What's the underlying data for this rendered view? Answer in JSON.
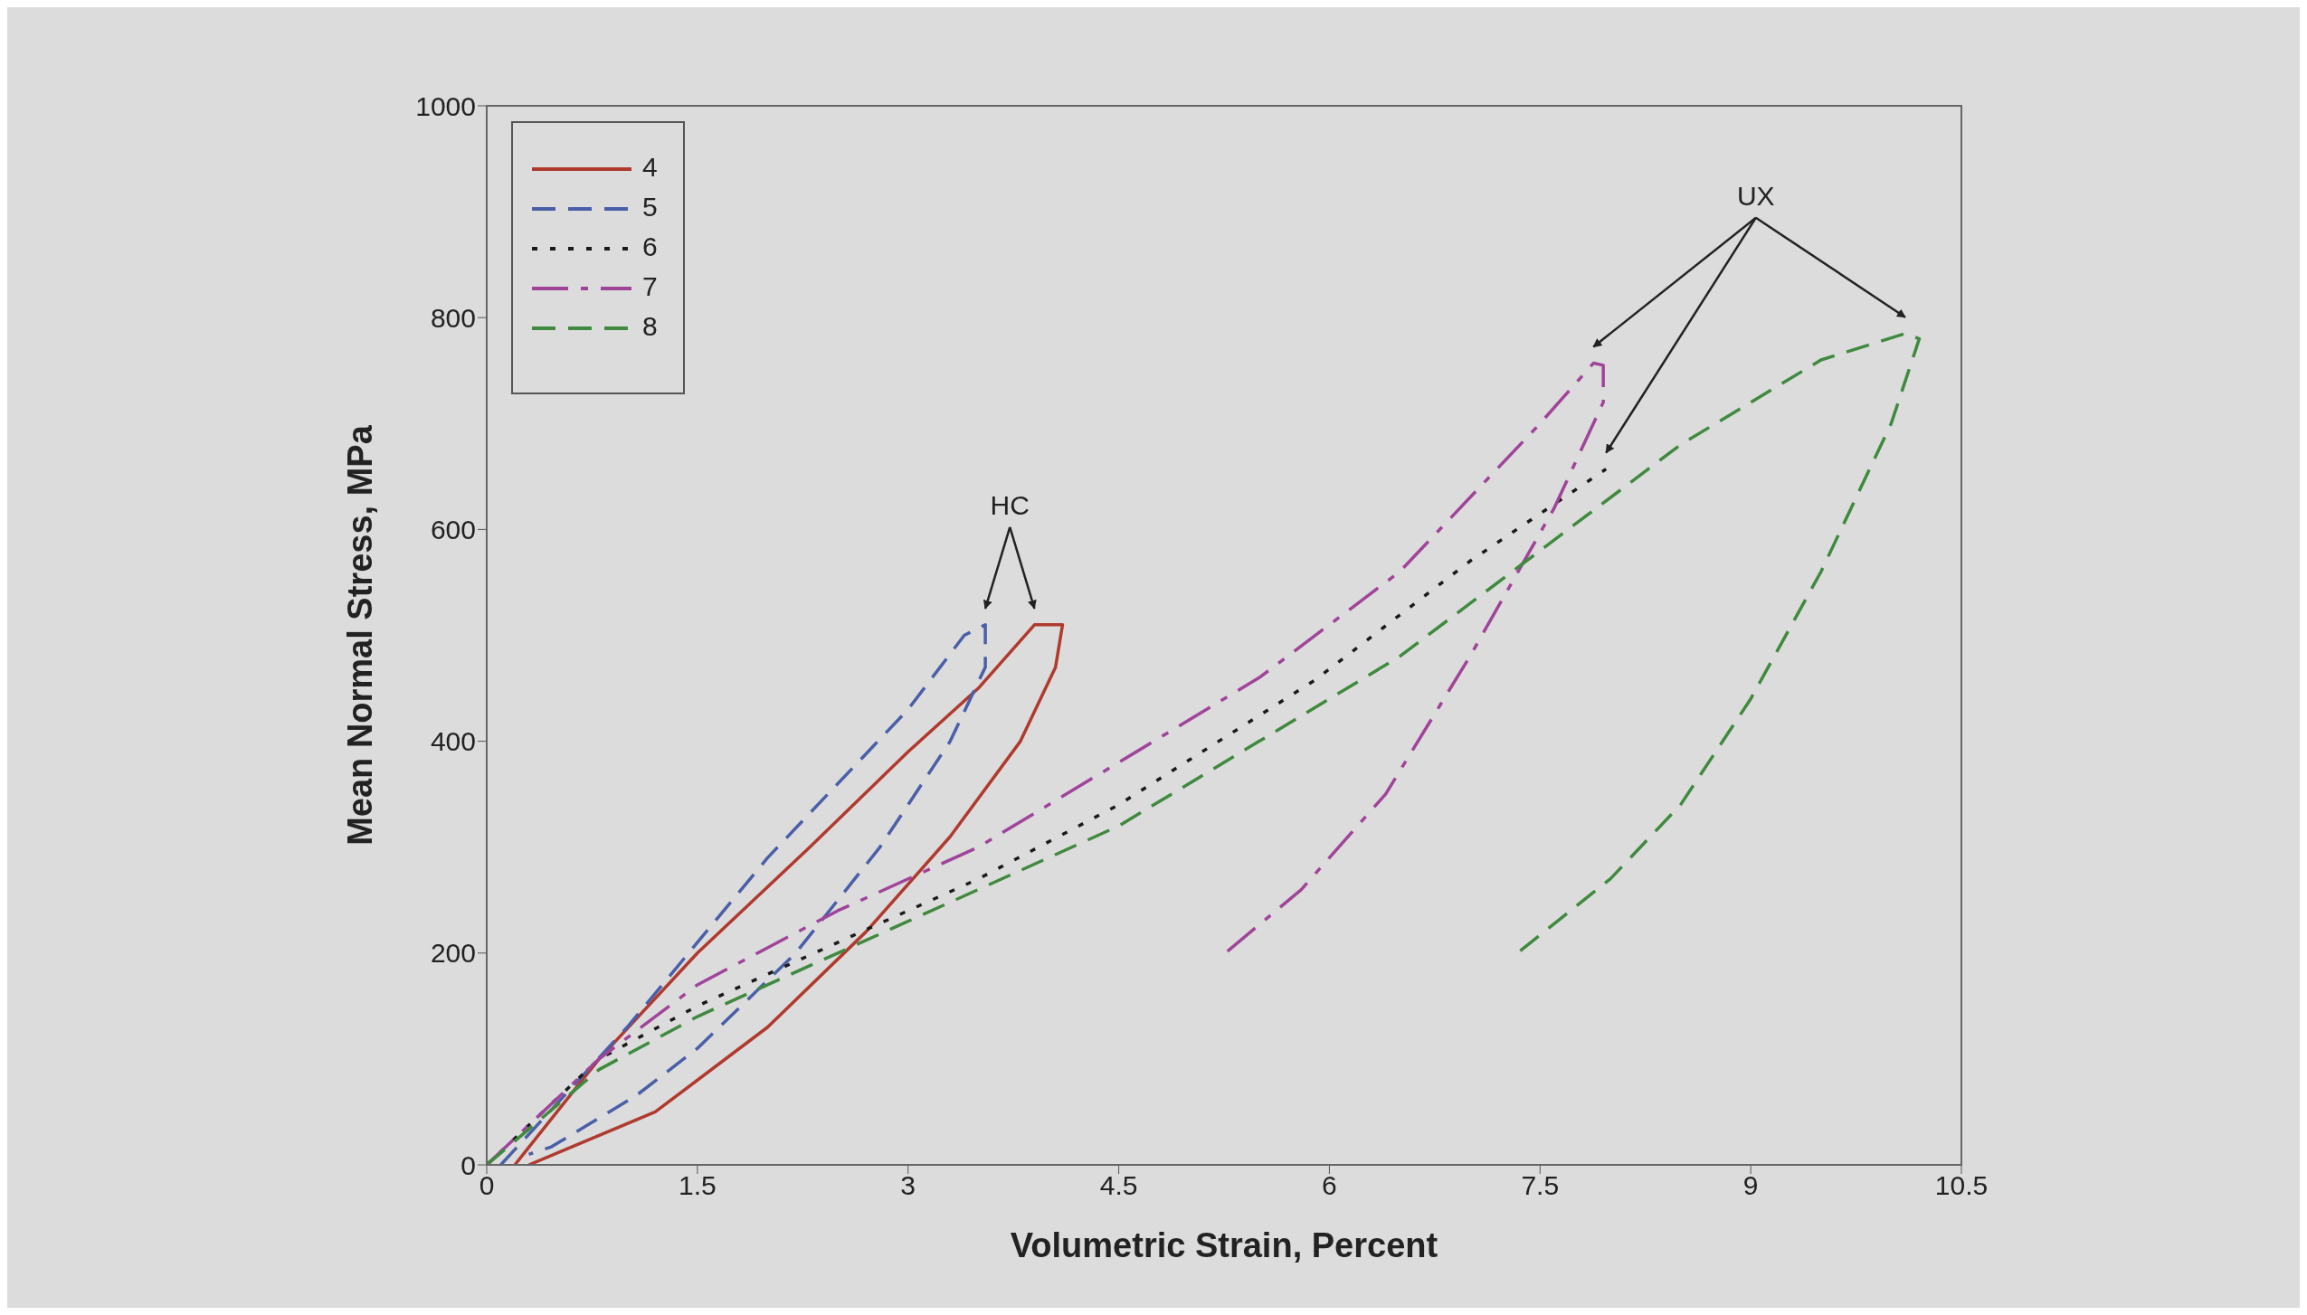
{
  "chart_data": {
    "type": "line",
    "xlabel": "Volumetric Strain, Percent",
    "ylabel": "Mean Normal Stress, MPa",
    "xlim": [
      0,
      10.5
    ],
    "xticks": [
      0,
      1.5,
      3,
      4.5,
      6,
      7.5,
      9,
      10.5
    ],
    "ylim": [
      0,
      1000
    ],
    "yticks": [
      0,
      200,
      400,
      600,
      800,
      1000
    ],
    "grid": false,
    "legend": "top left",
    "marker": "none",
    "series": [
      {
        "name": "4",
        "color": "#b03a2e",
        "line_style": "solid",
        "x": [
          0.2,
          0.8,
          1.5,
          2.3,
          3.0,
          3.5,
          3.9,
          4.1,
          4.05,
          3.8,
          3.3,
          2.7,
          2.0,
          1.2,
          0.3
        ],
        "values": [
          0,
          100,
          200,
          300,
          390,
          450,
          510,
          510,
          470,
          400,
          310,
          220,
          130,
          50,
          0
        ]
      },
      {
        "name": "5",
        "color": "#4a5fa8",
        "line_style": "dashed",
        "x": [
          0.1,
          1.0,
          2.0,
          3.0,
          3.4,
          3.55,
          3.55,
          3.3,
          2.8,
          2.2,
          1.5,
          1.06,
          0.46,
          0.3
        ],
        "values": [
          0,
          130,
          290,
          430,
          500,
          510,
          470,
          400,
          300,
          200,
          110,
          65,
          17,
          10
        ]
      },
      {
        "name": "6",
        "color": "#1a1a1a",
        "line_style": "dotted",
        "x": [
          0,
          0.8,
          1.5,
          2.5,
          3.5,
          4.5,
          5.9,
          7.0,
          7.97
        ],
        "values": [
          0,
          100,
          150,
          210,
          270,
          340,
          458,
          570,
          657
        ]
      },
      {
        "name": "7",
        "color": "#a0449a",
        "line_style": "dashdot",
        "x": [
          0,
          0.8,
          1.5,
          2.5,
          3.5,
          4.5,
          5.5,
          6.5,
          7.5,
          7.88,
          7.95,
          7.95,
          7.6,
          7.0,
          6.4,
          5.8,
          5.25
        ],
        "values": [
          0,
          100,
          170,
          240,
          300,
          380,
          460,
          560,
          700,
          757,
          755,
          720,
          620,
          480,
          350,
          260,
          199
        ]
      },
      {
        "name": "8",
        "color": "#3f8a3f",
        "line_style": "dashed",
        "x": [
          0,
          0.8,
          1.5,
          2.5,
          3.5,
          4.5,
          5.5,
          6.5,
          7.5,
          8.5,
          9.5,
          10.1,
          10.2,
          10.0,
          9.5,
          9.0,
          8.5,
          8.0,
          7.33
        ],
        "values": [
          0,
          90,
          140,
          200,
          260,
          320,
          400,
          480,
          580,
          680,
          760,
          785,
          780,
          700,
          560,
          440,
          340,
          270,
          199
        ]
      }
    ],
    "annotations": [
      "HC",
      "UX"
    ]
  }
}
